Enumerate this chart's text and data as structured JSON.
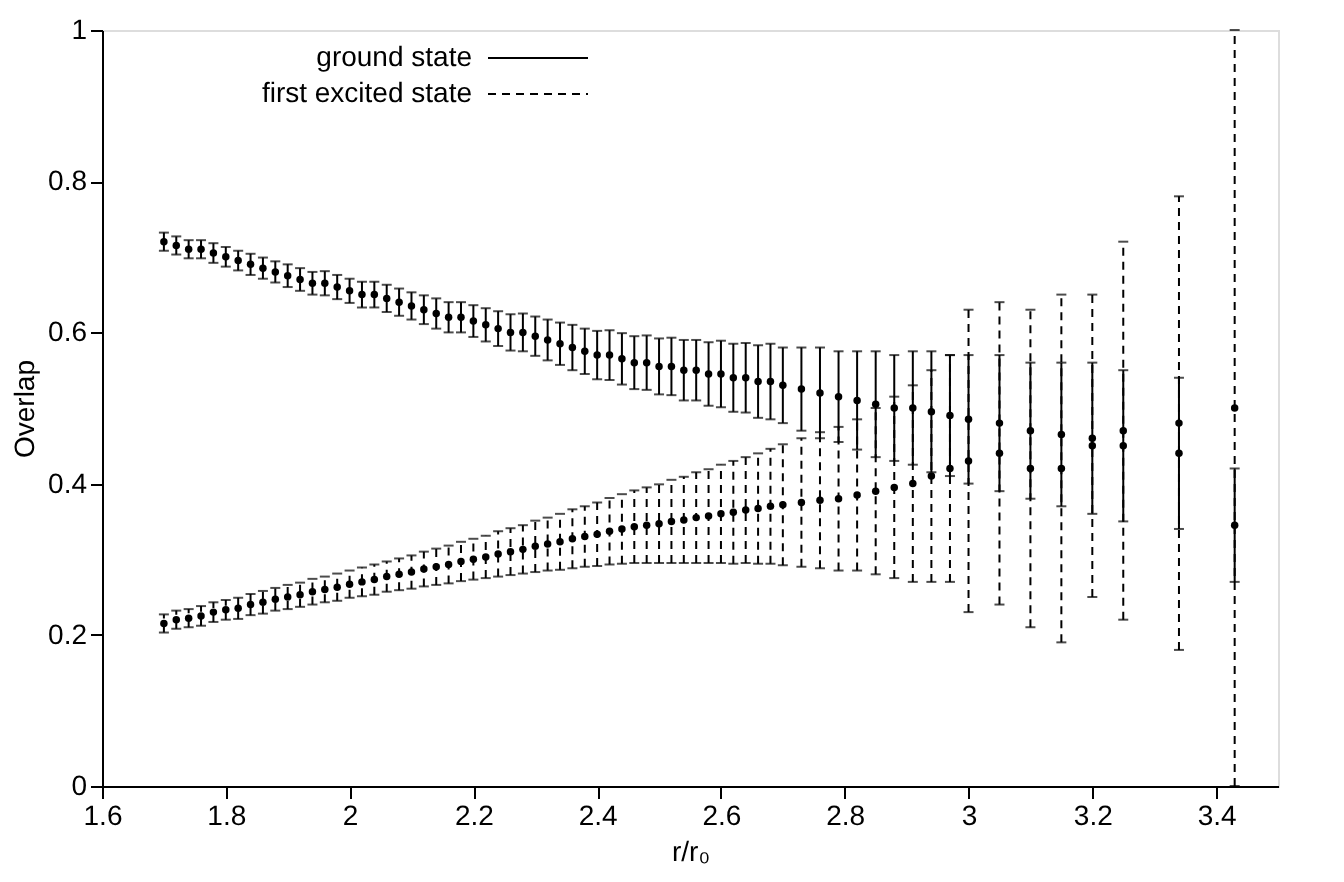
{
  "chart_data": {
    "type": "scatter",
    "xlabel": "r/r₀",
    "ylabel": "Overlap",
    "xlim": [
      1.6,
      3.5
    ],
    "xticks": [
      1.6,
      1.8,
      2,
      2.2,
      2.4,
      2.6,
      2.8,
      3,
      3.2,
      3.4
    ],
    "ylim": [
      0,
      1
    ],
    "yticks": [
      0,
      0.2,
      0.4,
      0.6,
      0.8,
      1
    ],
    "grid": false,
    "legend": "top",
    "marker": "circle",
    "series": [
      {
        "name": "ground state",
        "color": "#000000",
        "line_style": "solid",
        "x": [
          1.7,
          1.72,
          1.74,
          1.76,
          1.78,
          1.8,
          1.82,
          1.84,
          1.86,
          1.88,
          1.9,
          1.92,
          1.94,
          1.96,
          1.98,
          2.0,
          2.02,
          2.04,
          2.06,
          2.08,
          2.1,
          2.12,
          2.14,
          2.16,
          2.18,
          2.2,
          2.22,
          2.24,
          2.26,
          2.28,
          2.3,
          2.32,
          2.34,
          2.36,
          2.38,
          2.4,
          2.42,
          2.44,
          2.46,
          2.48,
          2.5,
          2.52,
          2.54,
          2.56,
          2.58,
          2.6,
          2.62,
          2.64,
          2.66,
          2.68,
          2.7,
          2.73,
          2.76,
          2.79,
          2.82,
          2.85,
          2.88,
          2.91,
          2.94,
          2.97,
          3.0,
          3.05,
          3.1,
          3.15,
          3.2,
          3.25,
          3.34,
          3.43
        ],
        "values": [
          0.72,
          0.715,
          0.71,
          0.71,
          0.705,
          0.7,
          0.695,
          0.69,
          0.685,
          0.68,
          0.675,
          0.67,
          0.665,
          0.665,
          0.66,
          0.655,
          0.65,
          0.65,
          0.645,
          0.64,
          0.635,
          0.63,
          0.625,
          0.62,
          0.62,
          0.615,
          0.61,
          0.605,
          0.6,
          0.6,
          0.595,
          0.59,
          0.585,
          0.58,
          0.575,
          0.57,
          0.57,
          0.565,
          0.56,
          0.56,
          0.555,
          0.555,
          0.55,
          0.55,
          0.545,
          0.545,
          0.54,
          0.54,
          0.535,
          0.535,
          0.53,
          0.525,
          0.52,
          0.515,
          0.51,
          0.505,
          0.5,
          0.5,
          0.495,
          0.49,
          0.485,
          0.48,
          0.47,
          0.465,
          0.46,
          0.45,
          0.44,
          0.345
        ],
        "errors": [
          0.012,
          0.012,
          0.012,
          0.012,
          0.013,
          0.013,
          0.013,
          0.014,
          0.014,
          0.014,
          0.015,
          0.015,
          0.015,
          0.016,
          0.016,
          0.016,
          0.017,
          0.017,
          0.018,
          0.018,
          0.018,
          0.019,
          0.02,
          0.02,
          0.02,
          0.021,
          0.022,
          0.023,
          0.024,
          0.025,
          0.026,
          0.027,
          0.028,
          0.03,
          0.03,
          0.032,
          0.033,
          0.034,
          0.035,
          0.036,
          0.037,
          0.038,
          0.04,
          0.04,
          0.042,
          0.044,
          0.045,
          0.046,
          0.048,
          0.05,
          0.05,
          0.055,
          0.06,
          0.06,
          0.065,
          0.07,
          0.07,
          0.075,
          0.08,
          0.08,
          0.085,
          0.09,
          0.09,
          0.095,
          0.1,
          0.1,
          0.1,
          0.075
        ]
      },
      {
        "name": "first excited state",
        "color": "#000000",
        "line_style": "dashed",
        "x": [
          1.7,
          1.72,
          1.74,
          1.76,
          1.78,
          1.8,
          1.82,
          1.84,
          1.86,
          1.88,
          1.9,
          1.92,
          1.94,
          1.96,
          1.98,
          2.0,
          2.02,
          2.04,
          2.06,
          2.08,
          2.1,
          2.12,
          2.14,
          2.16,
          2.18,
          2.2,
          2.22,
          2.24,
          2.26,
          2.28,
          2.3,
          2.32,
          2.34,
          2.36,
          2.38,
          2.4,
          2.42,
          2.44,
          2.46,
          2.48,
          2.5,
          2.52,
          2.54,
          2.56,
          2.58,
          2.6,
          2.62,
          2.64,
          2.66,
          2.68,
          2.7,
          2.73,
          2.76,
          2.79,
          2.82,
          2.85,
          2.88,
          2.91,
          2.94,
          2.97,
          3.0,
          3.05,
          3.1,
          3.15,
          3.2,
          3.25,
          3.34,
          3.43
        ],
        "values": [
          0.215,
          0.22,
          0.222,
          0.225,
          0.23,
          0.233,
          0.235,
          0.24,
          0.243,
          0.247,
          0.25,
          0.253,
          0.257,
          0.26,
          0.263,
          0.267,
          0.27,
          0.273,
          0.277,
          0.28,
          0.283,
          0.287,
          0.29,
          0.293,
          0.297,
          0.3,
          0.303,
          0.307,
          0.31,
          0.313,
          0.317,
          0.32,
          0.323,
          0.327,
          0.33,
          0.333,
          0.337,
          0.34,
          0.343,
          0.345,
          0.347,
          0.35,
          0.352,
          0.355,
          0.357,
          0.36,
          0.362,
          0.365,
          0.367,
          0.37,
          0.372,
          0.375,
          0.378,
          0.38,
          0.385,
          0.39,
          0.395,
          0.4,
          0.41,
          0.42,
          0.43,
          0.44,
          0.42,
          0.42,
          0.45,
          0.47,
          0.48,
          0.5
        ],
        "errors": [
          0.012,
          0.012,
          0.012,
          0.013,
          0.013,
          0.013,
          0.014,
          0.014,
          0.015,
          0.015,
          0.016,
          0.016,
          0.017,
          0.017,
          0.018,
          0.018,
          0.019,
          0.02,
          0.02,
          0.021,
          0.022,
          0.023,
          0.024,
          0.025,
          0.026,
          0.027,
          0.028,
          0.03,
          0.031,
          0.032,
          0.034,
          0.035,
          0.037,
          0.039,
          0.04,
          0.042,
          0.044,
          0.046,
          0.048,
          0.05,
          0.052,
          0.055,
          0.057,
          0.06,
          0.062,
          0.065,
          0.068,
          0.07,
          0.073,
          0.076,
          0.08,
          0.085,
          0.09,
          0.095,
          0.1,
          0.11,
          0.12,
          0.13,
          0.14,
          0.15,
          0.2,
          0.2,
          0.21,
          0.23,
          0.2,
          0.25,
          0.3,
          0.5
        ]
      }
    ]
  }
}
